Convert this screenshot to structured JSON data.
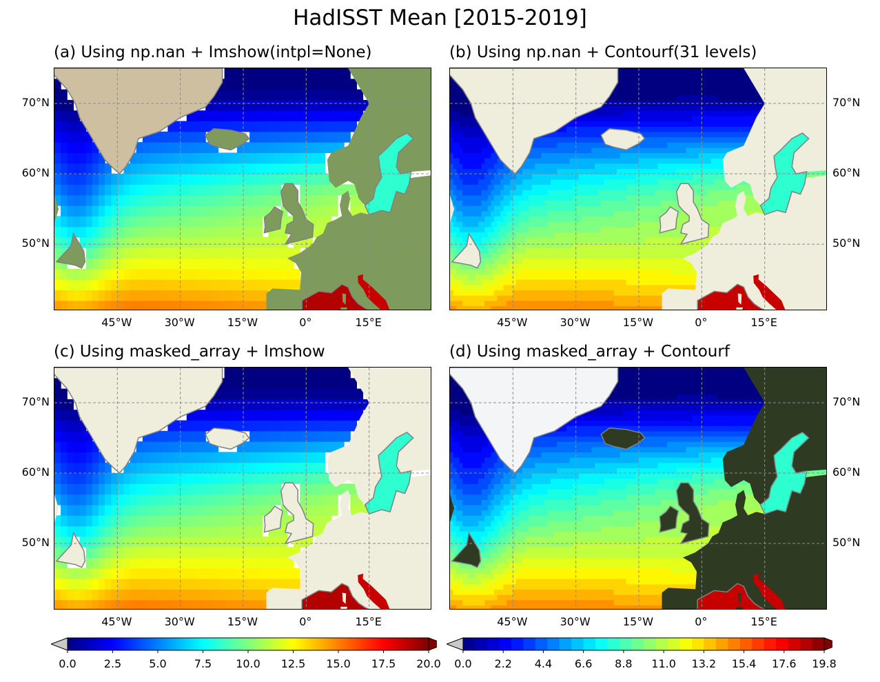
{
  "figure": {
    "title": "HadISST Mean [2015-2019]"
  },
  "panels": [
    {
      "id": "a",
      "title": "(a) Using np.nan + Imshow(intpl=None)",
      "land_style": "relief",
      "style": "imshow",
      "lat_side": "left"
    },
    {
      "id": "b",
      "title": "(b) Using np.nan + Contourf(31 levels)",
      "land_style": "beige",
      "style": "contourf",
      "lat_side": "right"
    },
    {
      "id": "c",
      "title": "(c) Using masked_array + Imshow",
      "land_style": "beige",
      "style": "imshow",
      "lat_side": "left"
    },
    {
      "id": "d",
      "title": "(d) Using masked_array + Contourf",
      "land_style": "satellite",
      "style": "contourf",
      "lat_side": "right"
    }
  ],
  "axes": {
    "lat_ticks": [
      "70°N",
      "60°N",
      "50°N"
    ],
    "lat_values": [
      70,
      60,
      50
    ],
    "lon_ticks": [
      "45°W",
      "30°W",
      "15°W",
      "0°",
      "15°E"
    ],
    "lon_values": [
      -45,
      -30,
      -15,
      0,
      15
    ],
    "lon_range": [
      -60,
      30
    ],
    "lat_range": [
      40.5,
      75
    ],
    "gridlines": true
  },
  "colorbars": [
    {
      "ticks": [
        "0.0",
        "2.5",
        "5.0",
        "7.5",
        "10.0",
        "12.5",
        "15.0",
        "17.5",
        "20.0"
      ],
      "range": [
        0,
        20
      ],
      "extend": "both",
      "cmap": "jet"
    },
    {
      "ticks": [
        "0.0",
        "2.2",
        "4.4",
        "6.6",
        "8.8",
        "11.0",
        "13.2",
        "15.4",
        "17.6",
        "19.8"
      ],
      "range": [
        0,
        19.8
      ],
      "extend": "both",
      "cmap": "jet-discrete-31"
    }
  ],
  "colors": {
    "land_beige": "#efeddb",
    "coastline": "#808080",
    "gridline": "#8c8c8c",
    "ice": "#c8ccd8",
    "relief_land": "#7e9a5c",
    "satellite_land": "#2e3a22",
    "greenland_relief": "#cdbf9f",
    "greenland_sat": "#f3f5f7"
  }
}
